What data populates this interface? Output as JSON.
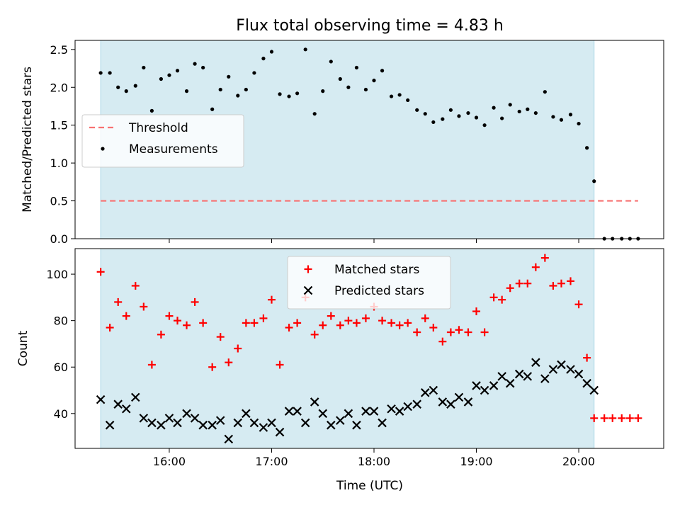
{
  "chart_data": {
    "title": "Flux total observing time = 4.83 h",
    "shaded_window": {
      "start": 15.33,
      "end": 20.15,
      "color": "#add8e6"
    },
    "xlim": [
      15.08,
      20.83
    ],
    "x_ticks": [
      16,
      17,
      18,
      19,
      20
    ],
    "x_tick_labels": [
      "16:00",
      "17:00",
      "18:00",
      "19:00",
      "20:00"
    ],
    "xlabel": "Time (UTC)",
    "x": [
      15.33,
      15.42,
      15.5,
      15.58,
      15.67,
      15.75,
      15.83,
      15.92,
      16.0,
      16.08,
      16.17,
      16.25,
      16.33,
      16.42,
      16.5,
      16.58,
      16.67,
      16.75,
      16.83,
      16.92,
      17.0,
      17.08,
      17.17,
      17.25,
      17.33,
      17.42,
      17.5,
      17.58,
      17.67,
      17.75,
      17.83,
      17.92,
      18.0,
      18.08,
      18.17,
      18.25,
      18.33,
      18.42,
      18.5,
      18.58,
      18.67,
      18.75,
      18.83,
      18.92,
      19.0,
      19.08,
      19.17,
      19.25,
      19.33,
      19.42,
      19.5,
      19.58,
      19.67,
      19.75,
      19.83,
      19.92,
      20.0,
      20.08,
      20.15,
      20.25,
      20.33,
      20.42,
      20.5,
      20.58
    ],
    "panels": [
      {
        "type": "scatter",
        "ylabel": "Matched/Predicted stars",
        "ylim": [
          0,
          2.62
        ],
        "y_ticks": [
          0,
          0.5,
          1,
          1.5,
          2,
          2.5
        ],
        "y_tick_labels": [
          "0.0",
          "0.5",
          "1.0",
          "1.5",
          "2.0",
          "2.5"
        ],
        "legend_position": "center-left",
        "threshold": {
          "name": "Threshold",
          "value": 0.5,
          "x_range": [
            15.33,
            20.58
          ],
          "color": "#f87171"
        },
        "series": [
          {
            "name": "Measurements",
            "marker": "dot",
            "color": "#000000",
            "values": [
              2.19,
              2.19,
              2.0,
              1.95,
              2.02,
              2.26,
              1.69,
              2.11,
              2.16,
              2.22,
              1.95,
              2.31,
              2.26,
              1.71,
              1.97,
              2.14,
              1.89,
              1.97,
              2.19,
              2.38,
              2.47,
              1.91,
              1.88,
              1.92,
              2.5,
              1.65,
              1.95,
              2.34,
              2.11,
              2.0,
              2.26,
              1.97,
              2.09,
              2.22,
              1.88,
              1.9,
              1.83,
              1.7,
              1.65,
              1.54,
              1.58,
              1.7,
              1.62,
              1.66,
              1.6,
              1.5,
              1.73,
              1.59,
              1.77,
              1.68,
              1.71,
              1.66,
              1.94,
              1.61,
              1.57,
              1.64,
              1.52,
              1.2,
              0.76,
              0,
              0,
              0,
              0,
              0
            ]
          }
        ]
      },
      {
        "type": "scatter",
        "ylabel": "Count",
        "ylim": [
          25,
          111
        ],
        "y_ticks": [
          40,
          60,
          80,
          100
        ],
        "y_tick_labels": [
          "40",
          "60",
          "80",
          "100"
        ],
        "legend_position": "top-center",
        "series": [
          {
            "name": "Matched stars",
            "marker": "plus",
            "color": "#ff0000",
            "values": [
              101,
              77,
              88,
              82,
              95,
              86,
              61,
              74,
              82,
              80,
              78,
              88,
              79,
              60,
              73,
              62,
              68,
              79,
              79,
              81,
              89,
              61,
              77,
              79,
              90,
              74,
              78,
              82,
              78,
              80,
              79,
              81,
              86,
              80,
              79,
              78,
              79,
              75,
              81,
              77,
              71,
              75,
              76,
              75,
              84,
              75,
              90,
              89,
              94,
              96,
              96,
              103,
              107,
              95,
              96,
              97,
              87,
              64,
              38,
              38,
              38,
              38,
              38,
              38
            ]
          },
          {
            "name": "Predicted stars",
            "marker": "x",
            "color": "#000000",
            "values": [
              46,
              35,
              44,
              42,
              47,
              38,
              36,
              35,
              38,
              36,
              40,
              38,
              35,
              35,
              37,
              29,
              36,
              40,
              36,
              34,
              36,
              32,
              41,
              41,
              36,
              45,
              40,
              35,
              37,
              40,
              35,
              41,
              41,
              36,
              42,
              41,
              43,
              44,
              49,
              50,
              45,
              44,
              47,
              45,
              52,
              50,
              52,
              56,
              53,
              57,
              56,
              62,
              55,
              59,
              61,
              59,
              57,
              53,
              50
            ]
          }
        ]
      }
    ]
  }
}
